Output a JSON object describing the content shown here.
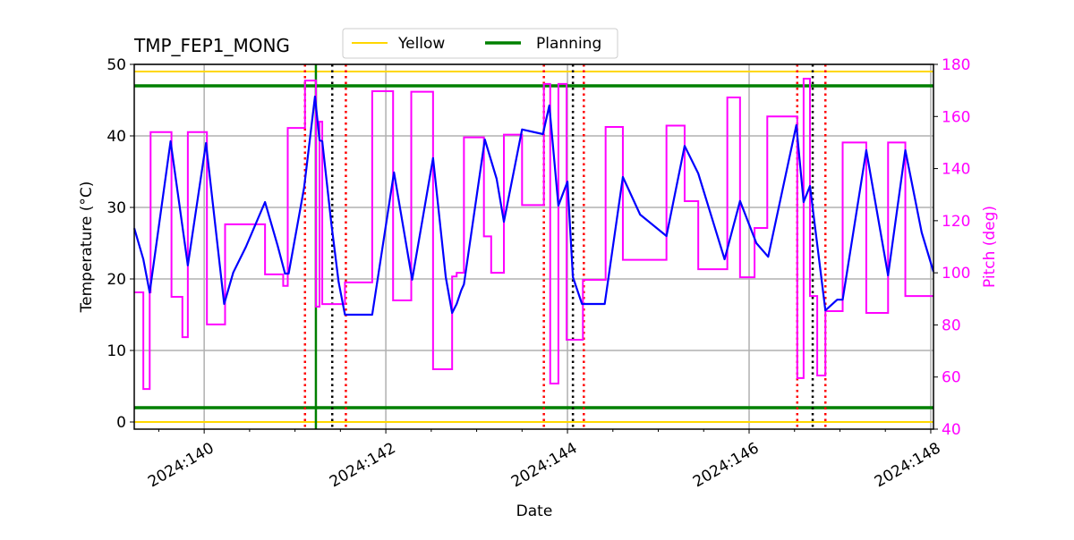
{
  "chart_data": {
    "type": "line",
    "title": "TMP_FEP1_MONG",
    "xlabel": "Date",
    "ylabel": "Temperature ($^\\circ$C)",
    "ylabel_display": "Temperature (°C)",
    "y2label": "Pitch (deg)",
    "xlim": [
      139.23,
      148.03
    ],
    "ylim": [
      -1,
      50
    ],
    "y2lim": [
      40,
      180
    ],
    "xticks": [
      140,
      142,
      144,
      146,
      148
    ],
    "xtick_labels": [
      "2024:140",
      "2024:142",
      "2024:144",
      "2024:146",
      "2024:148"
    ],
    "xminor_ticks": [
      139.5,
      140.5,
      141,
      141.5,
      142.5,
      143,
      143.5,
      144.5,
      145,
      145.5,
      146.5,
      147,
      147.5
    ],
    "yticks": [
      0,
      10,
      20,
      30,
      40,
      50
    ],
    "y2ticks": [
      40,
      60,
      80,
      100,
      120,
      140,
      160,
      180
    ],
    "grid": true,
    "legend": {
      "placement": "top-center, above plot",
      "entries": [
        {
          "name": "Yellow",
          "color": "#FFD700"
        },
        {
          "name": "Planning",
          "color": "#008000"
        }
      ]
    },
    "limit_lines": [
      {
        "name": "Yellow",
        "values": [
          49,
          0
        ],
        "color": "#FFD700"
      },
      {
        "name": "Planning",
        "values": [
          47,
          2
        ],
        "color": "#008000"
      }
    ],
    "vlines": {
      "red_dotted": [
        141.11,
        141.56,
        143.74,
        144.18,
        146.53,
        146.84
      ],
      "black_dotted": [
        141.41,
        144.06,
        146.7
      ],
      "green_solid": [
        141.23
      ]
    },
    "series": [
      {
        "axis": "left",
        "color": "#0000FF",
        "x": [
          139.23,
          139.33,
          139.4,
          139.63,
          139.82,
          140.02,
          140.22,
          140.32,
          140.46,
          140.67,
          140.81,
          140.89,
          140.93,
          141.1,
          141.22,
          141.27,
          141.3,
          141.4,
          141.48,
          141.55,
          141.85,
          142.09,
          142.29,
          142.52,
          142.66,
          142.73,
          142.78,
          142.83,
          142.86,
          143.09,
          143.22,
          143.3,
          143.5,
          143.73,
          143.8,
          143.9,
          144.0,
          144.06,
          144.16,
          144.41,
          144.61,
          144.8,
          145.09,
          145.29,
          145.44,
          145.73,
          145.9,
          146.08,
          146.21,
          146.52,
          146.6,
          146.67,
          146.84,
          146.97,
          147.03,
          147.29,
          147.53,
          147.72,
          147.9,
          148.03
        ],
        "y": [
          27.1,
          22.75,
          18.1,
          39.25,
          21.9,
          39.0,
          16.5,
          20.9,
          24.5,
          30.75,
          24.6,
          20.75,
          20.75,
          32.75,
          45.5,
          39.4,
          39.25,
          27.75,
          19.6,
          15.0,
          15.0,
          34.9,
          19.9,
          36.9,
          20.25,
          15.25,
          16.5,
          18.4,
          19.25,
          39.5,
          34.0,
          28.0,
          40.9,
          40.25,
          44.25,
          30.25,
          33.6,
          20.25,
          16.5,
          16.5,
          34.25,
          29.0,
          26.0,
          38.6,
          34.75,
          22.75,
          30.9,
          25.0,
          23.1,
          41.5,
          30.75,
          33.0,
          15.6,
          17.1,
          17.1,
          38.0,
          20.5,
          38.0,
          26.5,
          21.0
        ]
      },
      {
        "axis": "right",
        "color": "#FF00FF",
        "step": "post",
        "x": [
          139.23,
          139.33,
          139.4,
          139.41,
          139.64,
          139.76,
          139.82,
          140.03,
          140.23,
          140.67,
          140.87,
          140.92,
          141.11,
          141.23,
          141.27,
          141.3,
          141.55,
          141.85,
          142.08,
          142.28,
          142.52,
          142.73,
          142.78,
          142.86,
          143.08,
          143.16,
          143.3,
          143.5,
          143.74,
          143.81,
          143.9,
          143.99,
          144.17,
          144.42,
          144.61,
          145.09,
          145.29,
          145.44,
          145.76,
          145.9,
          146.06,
          146.2,
          146.53,
          146.6,
          146.67,
          146.75,
          146.84,
          147.03,
          147.29,
          147.53,
          147.72,
          148.03
        ],
        "y": [
          92.5,
          55.4,
          92.5,
          154,
          90.8,
          75.3,
          154,
          80.2,
          118.6,
          99.4,
          95,
          155.6,
          173.8,
          87,
          158,
          88,
          96.3,
          169.7,
          89.4,
          169.5,
          63,
          98.6,
          100,
          152,
          114,
          100,
          153,
          126,
          172.5,
          57.5,
          172.5,
          74.3,
          97.3,
          156,
          105,
          156.5,
          127.5,
          101.4,
          167.3,
          98.3,
          117.2,
          160,
          59.6,
          174.5,
          91.1,
          60.6,
          85.3,
          150,
          84.6,
          150,
          91.1,
          91.1
        ]
      }
    ]
  }
}
